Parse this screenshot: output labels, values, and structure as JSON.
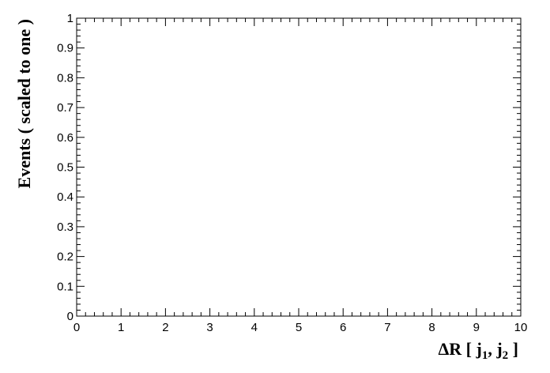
{
  "chart_data": {
    "type": "line",
    "series": [],
    "xlabel": {
      "prefix": "ΔR [ j",
      "sub1": "1",
      "mid": ", j",
      "sub2": "2",
      "suffix": " ]"
    },
    "ylabel": "Events  ( scaled to one )",
    "xlim": [
      0,
      10
    ],
    "ylim": [
      0,
      1
    ],
    "x_major_ticks": [
      0,
      1,
      2,
      3,
      4,
      5,
      6,
      7,
      8,
      9,
      10
    ],
    "x_tick_labels": [
      "0",
      "1",
      "2",
      "3",
      "4",
      "5",
      "6",
      "7",
      "8",
      "9",
      "10"
    ],
    "y_major_ticks": [
      0,
      0.1,
      0.2,
      0.3,
      0.4,
      0.5,
      0.6,
      0.7,
      0.8,
      0.9,
      1
    ],
    "y_tick_labels": [
      "0",
      "0.1",
      "0.2",
      "0.3",
      "0.4",
      "0.5",
      "0.6",
      "0.7",
      "0.8",
      "0.9",
      "1"
    ],
    "x_minor_per_major": 5,
    "y_minor_per_major": 5,
    "grid": false,
    "legend": "none",
    "frame_color": "#000000"
  }
}
